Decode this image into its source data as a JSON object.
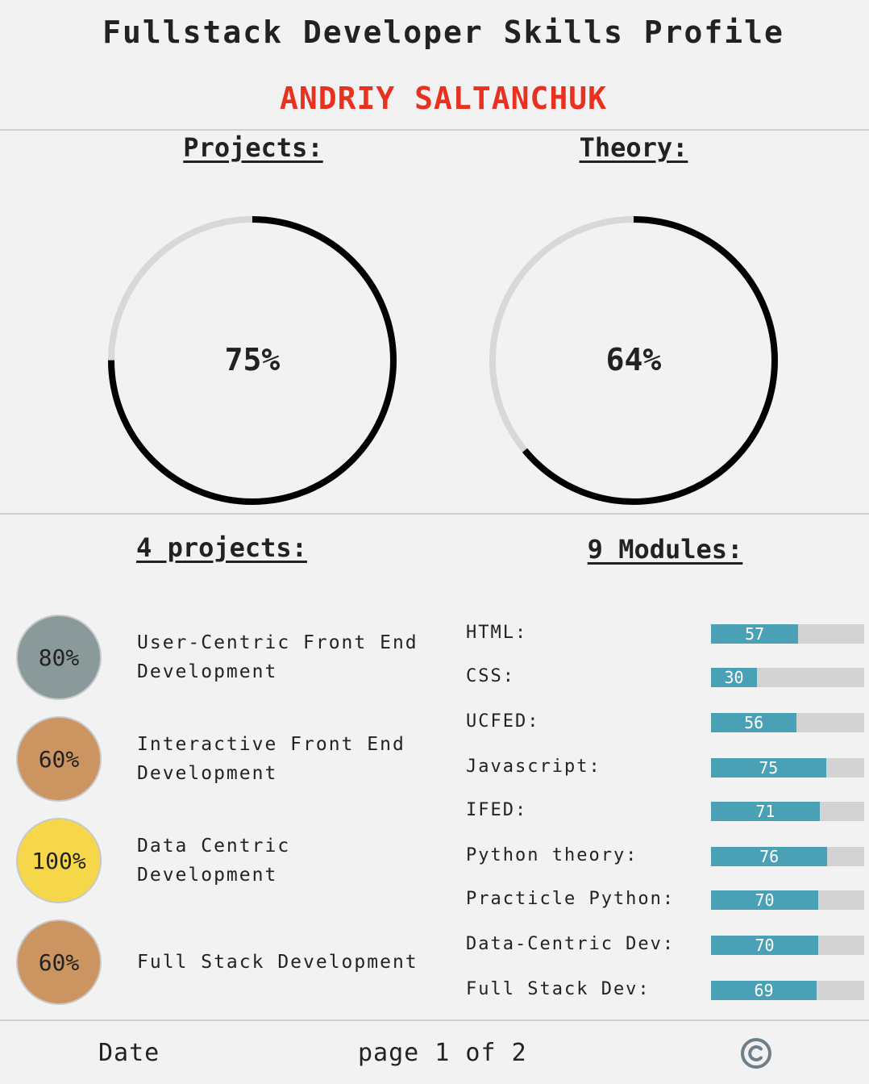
{
  "header": {
    "title": "Fullstack Developer Skills Profile",
    "name": "ANDRIY SALTANCHUK",
    "name_color": "#e8321f"
  },
  "summary": {
    "projects": {
      "label": "Projects:",
      "percent": 75,
      "text": "75%"
    },
    "theory": {
      "label": "Theory:",
      "percent": 64,
      "text": "64%"
    }
  },
  "projects": {
    "heading": "4 projects:",
    "items": [
      {
        "percent": "80%",
        "line1": "User-Centric Front End",
        "line2": "Development",
        "color": "#8a9a9a"
      },
      {
        "percent": "60%",
        "line1": "Interactive Front End",
        "line2": "Development",
        "color": "#cc9460"
      },
      {
        "percent": "100%",
        "line1": "Data Centric Development",
        "line2": "",
        "color": "#f7d74a"
      },
      {
        "percent": "60%",
        "line1": "Full Stack Development",
        "line2": "",
        "color": "#cc9460"
      }
    ]
  },
  "modules": {
    "heading": "9 Modules:",
    "bar_color": "#4aa0b5",
    "items": [
      {
        "name": "HTML:",
        "value": 57
      },
      {
        "name": "CSS:",
        "value": 30
      },
      {
        "name": "UCFED:",
        "value": 56
      },
      {
        "name": "Javascript:",
        "value": 75
      },
      {
        "name": "IFED:",
        "value": 71
      },
      {
        "name": "Python theory:",
        "value": 76
      },
      {
        "name": "Practicle Python:",
        "value": 70
      },
      {
        "name": "Data-Centric Dev:",
        "value": 70
      },
      {
        "name": "Full Stack Dev:",
        "value": 69
      }
    ]
  },
  "footer": {
    "date": "Date",
    "page": "page 1 of 2",
    "copyright_icon": "copyright-icon"
  }
}
